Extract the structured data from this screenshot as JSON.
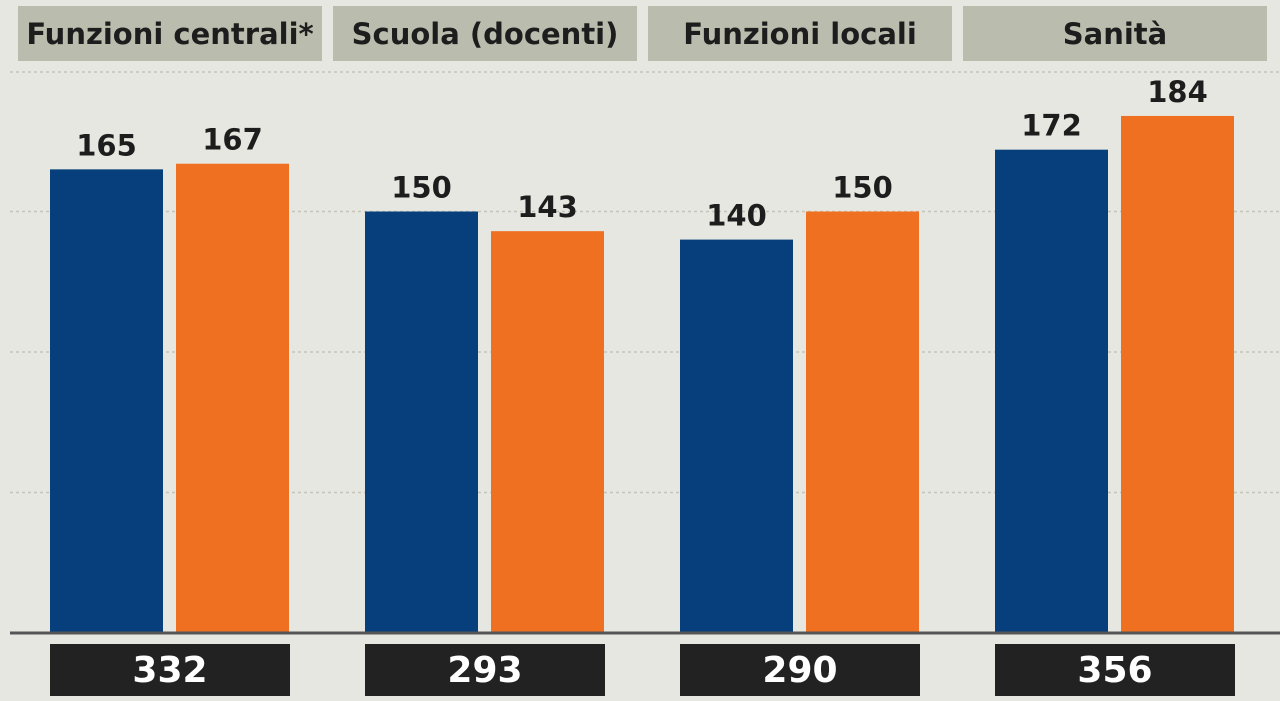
{
  "chart_data": {
    "type": "bar",
    "categories": [
      "Funzioni centrali*",
      "Scuola (docenti)",
      "Funzioni locali",
      "Sanità"
    ],
    "series": [
      {
        "values": [
          165,
          150,
          140,
          172
        ],
        "color": "#063f7c"
      },
      {
        "values": [
          167,
          143,
          150,
          184
        ],
        "color": "#f07022"
      }
    ],
    "totals": [
      "332",
      "293",
      "290",
      "356"
    ],
    "ylim": [
      0,
      200
    ],
    "grid": true
  }
}
